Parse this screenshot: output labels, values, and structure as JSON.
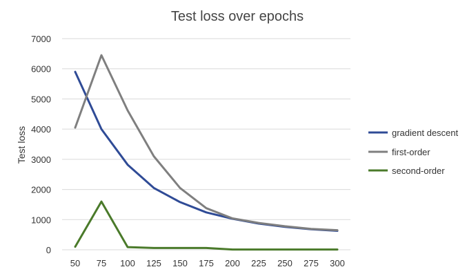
{
  "chart_data": {
    "type": "line",
    "title": "Test loss over epochs",
    "xlabel": "",
    "ylabel": "Test loss",
    "ylim": [
      0,
      7000
    ],
    "yticks": [
      0,
      1000,
      2000,
      3000,
      4000,
      5000,
      6000,
      7000
    ],
    "x": [
      50,
      75,
      100,
      125,
      150,
      175,
      200,
      225,
      250,
      275,
      300
    ],
    "grid": true,
    "legend_position": "right",
    "series": [
      {
        "name": "gradient descent",
        "color": "#2f4b96",
        "values": [
          5900,
          4000,
          2820,
          2050,
          1580,
          1240,
          1030,
          870,
          760,
          680,
          630
        ]
      },
      {
        "name": "first-order",
        "color": "#7f7f7f",
        "values": [
          4050,
          6450,
          4620,
          3100,
          2050,
          1380,
          1040,
          890,
          780,
          690,
          650
        ]
      },
      {
        "name": "second-order",
        "color": "#4a7a2a",
        "values": [
          100,
          1600,
          90,
          60,
          60,
          60,
          10,
          10,
          10,
          10,
          10
        ]
      }
    ]
  }
}
